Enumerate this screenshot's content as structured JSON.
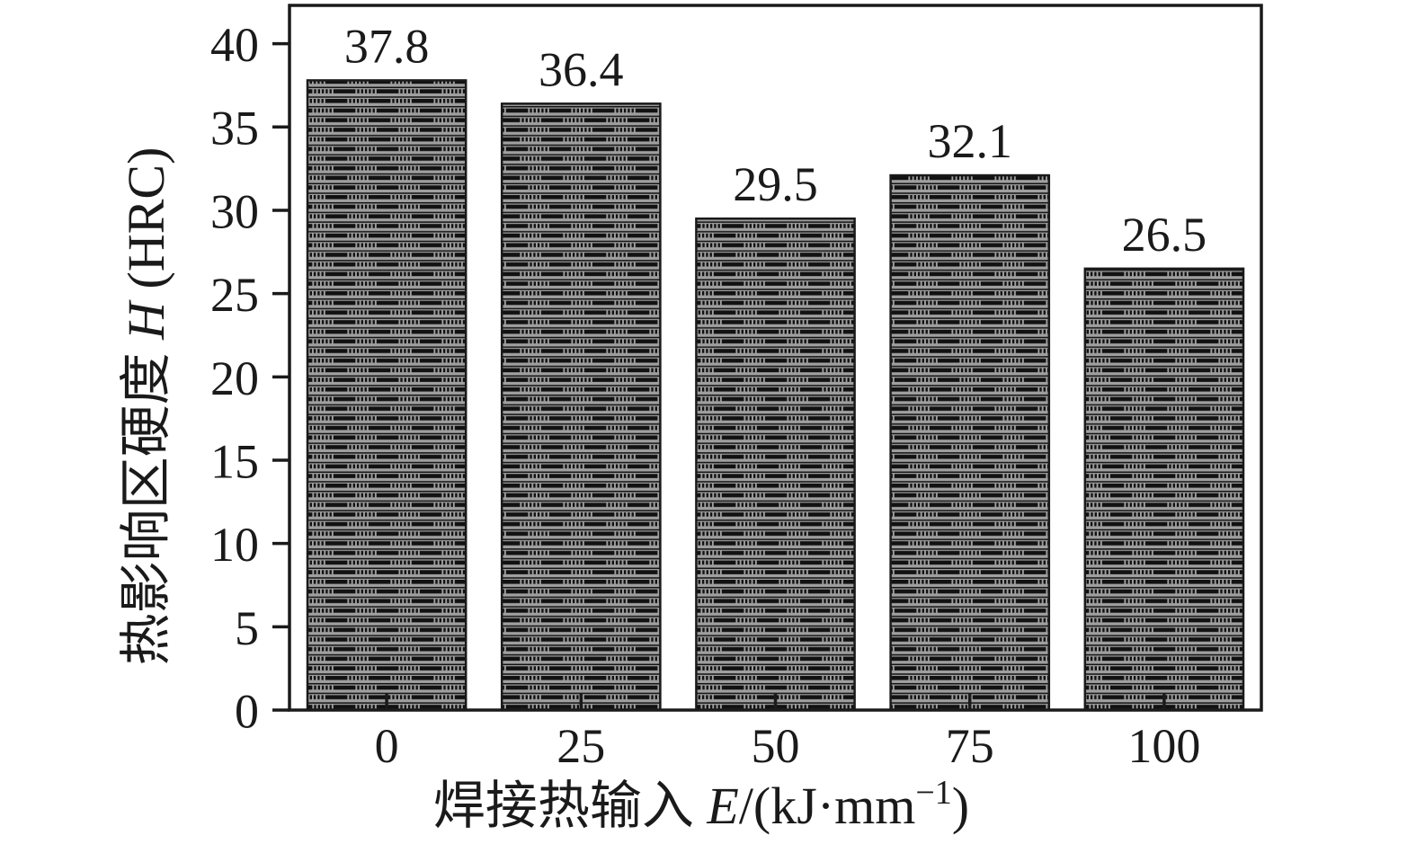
{
  "chart_data": {
    "type": "bar",
    "title": "",
    "categories": [
      "0",
      "25",
      "50",
      "75",
      "100"
    ],
    "values": [
      37.8,
      36.4,
      29.5,
      32.1,
      26.5
    ],
    "value_labels": [
      "37.8",
      "36.4",
      "29.5",
      "32.1",
      "26.5"
    ],
    "yticks": [
      0,
      5,
      10,
      15,
      20,
      25,
      30,
      35,
      40
    ],
    "ylim": [
      0,
      42.3
    ],
    "grid": false,
    "legend": null,
    "xlabel": {
      "prefix": "焊接热输入 ",
      "var": "E",
      "mid": "/(kJ·mm",
      "sup": "−1",
      "close": ")",
      "full": "焊接热输入 E/(kJ·mm−1)"
    },
    "ylabel": {
      "prefix": "热影响区硬度 ",
      "var": "H",
      "suffix": " (HRC)",
      "full": "热影响区硬度 H (HRC)"
    },
    "style": {
      "bar_fill": "#9f9f9f",
      "hatch_color": "#121212",
      "axis_color": "#1a1a1a",
      "text_color": "#1a1a1a",
      "background": "#ffffff"
    }
  }
}
